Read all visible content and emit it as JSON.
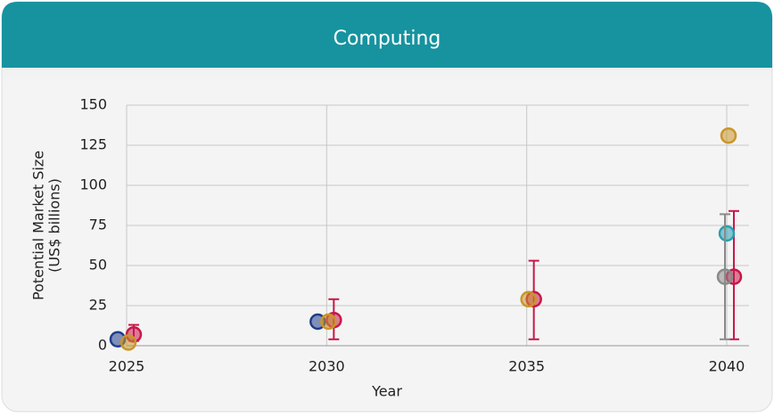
{
  "chart_data": {
    "type": "scatter",
    "title": "Computing",
    "xlabel": "Year",
    "ylabel": [
      "Potential Market Size",
      "(US$ billions)"
    ],
    "xlim": [
      2025,
      2040
    ],
    "xticks": [
      2025,
      2030,
      2035,
      2040
    ],
    "ylim": [
      0,
      150
    ],
    "yticks": [
      0,
      25,
      50,
      75,
      100,
      125,
      150
    ],
    "grid": true,
    "series": [
      {
        "color": "#1f3d8a",
        "x": [
          2025,
          2030
        ],
        "values": [
          4,
          15
        ]
      },
      {
        "color": "#c8174a",
        "x": [
          2025,
          2030,
          2035,
          2040
        ],
        "values": [
          7,
          16,
          29,
          43
        ],
        "lower": [
          3,
          4,
          4,
          4
        ],
        "upper": [
          13,
          29,
          53,
          84
        ]
      },
      {
        "color": "#c9962a",
        "x": [
          2025,
          2030,
          2035,
          2040
        ],
        "values": [
          2,
          15,
          29,
          131
        ]
      },
      {
        "color": "#2a9fb0",
        "x": [
          2040
        ],
        "values": [
          70
        ]
      },
      {
        "color": "#8a8a8a",
        "x": [
          2040
        ],
        "values": [
          43
        ],
        "lower": [
          4
        ],
        "upper": [
          82
        ]
      }
    ]
  }
}
